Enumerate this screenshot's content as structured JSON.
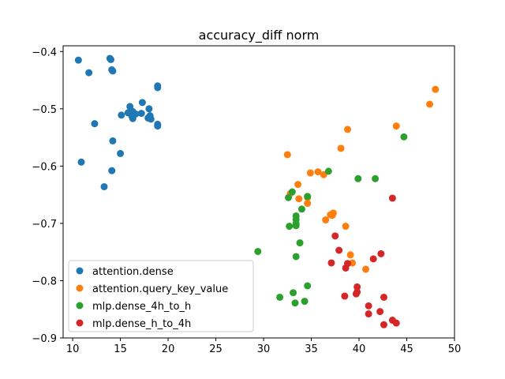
{
  "chart_data": {
    "type": "scatter",
    "title": "accuracy_diff  norm",
    "xlabel": "",
    "ylabel": "",
    "xlim": [
      9,
      50
    ],
    "ylim": [
      -0.9,
      -0.39
    ],
    "x_ticks": [
      10,
      15,
      20,
      25,
      30,
      35,
      40,
      45,
      50
    ],
    "x_tick_labels": [
      "10",
      "15",
      "20",
      "25",
      "30",
      "35",
      "40",
      "45",
      "50"
    ],
    "y_ticks": [
      -0.9,
      -0.8,
      -0.7,
      -0.6,
      -0.5,
      -0.4
    ],
    "y_tick_labels": [
      "−0.9",
      "−0.8",
      "−0.7",
      "−0.6",
      "−0.5",
      "−0.4"
    ],
    "grid": false,
    "legend_position": "lower-left",
    "series": [
      {
        "name": "attention.dense",
        "color": "#1f77b4",
        "points": [
          [
            10.6,
            -0.415
          ],
          [
            11.7,
            -0.437
          ],
          [
            13.9,
            -0.412
          ],
          [
            14.0,
            -0.414
          ],
          [
            14.1,
            -0.432
          ],
          [
            14.2,
            -0.434
          ],
          [
            18.9,
            -0.46
          ],
          [
            18.9,
            -0.463
          ],
          [
            17.3,
            -0.489
          ],
          [
            16.0,
            -0.496
          ],
          [
            18.0,
            -0.5
          ],
          [
            16.3,
            -0.505
          ],
          [
            15.8,
            -0.507
          ],
          [
            17.2,
            -0.508
          ],
          [
            16.6,
            -0.509
          ],
          [
            15.1,
            -0.511
          ],
          [
            18.1,
            -0.512
          ],
          [
            16.2,
            -0.513
          ],
          [
            17.9,
            -0.516
          ],
          [
            16.3,
            -0.517
          ],
          [
            18.2,
            -0.518
          ],
          [
            12.3,
            -0.526
          ],
          [
            18.9,
            -0.527
          ],
          [
            18.9,
            -0.53
          ],
          [
            14.2,
            -0.556
          ],
          [
            15.0,
            -0.578
          ],
          [
            10.9,
            -0.593
          ],
          [
            14.1,
            -0.608
          ],
          [
            13.3,
            -0.636
          ]
        ]
      },
      {
        "name": "attention.query_key_value",
        "color": "#ff7f0e",
        "points": [
          [
            48.0,
            -0.466
          ],
          [
            47.4,
            -0.492
          ],
          [
            43.9,
            -0.53
          ],
          [
            38.8,
            -0.536
          ],
          [
            38.1,
            -0.569
          ],
          [
            32.5,
            -0.58
          ],
          [
            35.7,
            -0.61
          ],
          [
            34.9,
            -0.612
          ],
          [
            36.3,
            -0.615
          ],
          [
            33.6,
            -0.632
          ],
          [
            32.8,
            -0.648
          ],
          [
            34.6,
            -0.655
          ],
          [
            33.7,
            -0.657
          ],
          [
            34.6,
            -0.665
          ],
          [
            37.3,
            -0.682
          ],
          [
            37.0,
            -0.685
          ],
          [
            37.2,
            -0.686
          ],
          [
            36.5,
            -0.694
          ],
          [
            38.6,
            -0.705
          ],
          [
            39.1,
            -0.755
          ],
          [
            39.3,
            -0.769
          ],
          [
            40.7,
            -0.78
          ]
        ]
      },
      {
        "name": "mlp.dense_4h_to_h",
        "color": "#2ca02c",
        "points": [
          [
            44.7,
            -0.549
          ],
          [
            36.8,
            -0.609
          ],
          [
            39.9,
            -0.622
          ],
          [
            41.7,
            -0.622
          ],
          [
            33.0,
            -0.645
          ],
          [
            32.6,
            -0.655
          ],
          [
            34.6,
            -0.653
          ],
          [
            34.0,
            -0.675
          ],
          [
            33.4,
            -0.687
          ],
          [
            33.4,
            -0.693
          ],
          [
            33.4,
            -0.7
          ],
          [
            33.4,
            -0.704
          ],
          [
            32.7,
            -0.705
          ],
          [
            33.8,
            -0.734
          ],
          [
            29.4,
            -0.749
          ],
          [
            33.4,
            -0.758
          ],
          [
            34.6,
            -0.809
          ],
          [
            33.1,
            -0.821
          ],
          [
            31.7,
            -0.829
          ],
          [
            33.3,
            -0.839
          ],
          [
            34.3,
            -0.836
          ]
        ]
      },
      {
        "name": "mlp.dense_h_to_4h",
        "color": "#d62728",
        "points": [
          [
            43.5,
            -0.656
          ],
          [
            37.5,
            -0.722
          ],
          [
            37.9,
            -0.747
          ],
          [
            42.3,
            -0.753
          ],
          [
            41.5,
            -0.762
          ],
          [
            38.8,
            -0.77
          ],
          [
            37.1,
            -0.769
          ],
          [
            38.6,
            -0.778
          ],
          [
            39.8,
            -0.811
          ],
          [
            39.8,
            -0.82
          ],
          [
            39.7,
            -0.823
          ],
          [
            38.5,
            -0.827
          ],
          [
            42.6,
            -0.829
          ],
          [
            41.0,
            -0.844
          ],
          [
            42.2,
            -0.854
          ],
          [
            41.0,
            -0.858
          ],
          [
            43.5,
            -0.869
          ],
          [
            43.9,
            -0.874
          ],
          [
            42.6,
            -0.877
          ]
        ]
      }
    ]
  }
}
